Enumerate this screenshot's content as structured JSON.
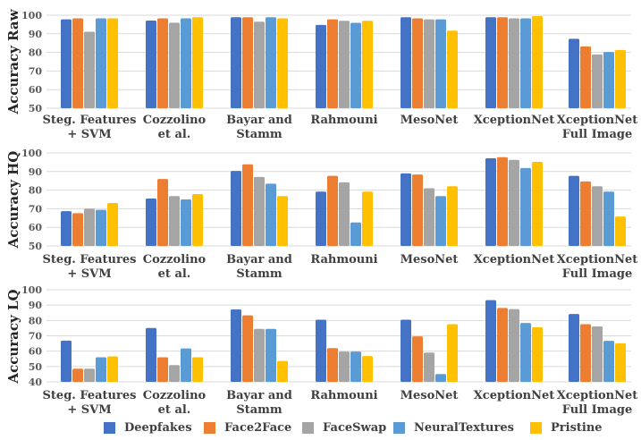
{
  "chart_data": {
    "type": "bar",
    "categories": [
      [
        "Steg. Features",
        "+ SVM"
      ],
      [
        "Cozzolino",
        "et al."
      ],
      [
        "Bayar and",
        "Stamm"
      ],
      [
        "Rahmouni"
      ],
      [
        "MesoNet"
      ],
      [
        "XceptionNet"
      ],
      [
        "XceptionNet",
        "Full Image"
      ]
    ],
    "legend": {
      "position": "bottom",
      "entries": [
        "Deepfakes",
        "Face2Face",
        "FaceSwap",
        "NeuralTextures",
        "Pristine"
      ]
    },
    "series_colors": {
      "Deepfakes": "#4472C4",
      "Face2Face": "#ED7D31",
      "FaceSwap": "#A5A5A5",
      "NeuralTextures": "#5B9BD5",
      "Pristine": "#FFC000"
    },
    "panels": [
      {
        "ylabel": "Accuracy Raw",
        "ylim": [
          50,
          100
        ],
        "yticks": [
          50,
          60,
          70,
          80,
          90,
          100
        ],
        "grid": true,
        "series": [
          {
            "name": "Deepfakes",
            "values": [
              97.8,
              97.1,
              98.9,
              94.8,
              98.9,
              98.9,
              87.3
            ]
          },
          {
            "name": "Face2Face",
            "values": [
              98.3,
              98.3,
              98.9,
              97.8,
              98.3,
              98.9,
              83.2
            ]
          },
          {
            "name": "FaceSwap",
            "values": [
              91.1,
              96.0,
              96.5,
              97.0,
              97.8,
              98.3,
              78.9
            ]
          },
          {
            "name": "NeuralTextures",
            "values": [
              98.3,
              98.3,
              98.9,
              95.9,
              97.8,
              98.3,
              80.2
            ]
          },
          {
            "name": "Pristine",
            "values": [
              98.3,
              98.9,
              98.3,
              97.0,
              91.7,
              99.5,
              81.3
            ]
          }
        ]
      },
      {
        "ylabel": "Accuracy HQ",
        "ylim": [
          50,
          100
        ],
        "yticks": [
          50,
          60,
          70,
          80,
          90,
          100
        ],
        "grid": true,
        "series": [
          {
            "name": "Deepfakes",
            "values": [
              68.7,
              75.5,
              90.3,
              79.2,
              89.0,
              97.1,
              87.7
            ]
          },
          {
            "name": "Face2Face",
            "values": [
              67.6,
              86.0,
              93.9,
              87.7,
              88.4,
              97.7,
              84.7
            ]
          },
          {
            "name": "FaceSwap",
            "values": [
              70.0,
              76.8,
              87.1,
              84.2,
              81.0,
              96.3,
              82.1
            ]
          },
          {
            "name": "NeuralTextures",
            "values": [
              69.4,
              75.0,
              83.5,
              62.6,
              76.8,
              91.9,
              79.2
            ]
          },
          {
            "name": "Pristine",
            "values": [
              73.1,
              77.9,
              76.8,
              79.2,
              82.1,
              95.2,
              65.8
            ]
          }
        ]
      },
      {
        "ylabel": "Accuracy LQ",
        "ylim": [
          40,
          100
        ],
        "yticks": [
          40,
          50,
          60,
          70,
          80,
          90,
          100
        ],
        "grid": true,
        "series": [
          {
            "name": "Deepfakes",
            "values": [
              66.9,
              75.1,
              87.2,
              80.5,
              80.5,
              93.2,
              84.2
            ]
          },
          {
            "name": "Face2Face",
            "values": [
              48.6,
              56.0,
              83.3,
              62.0,
              69.6,
              88.1,
              77.6
            ]
          },
          {
            "name": "FaceSwap",
            "values": [
              48.6,
              50.9,
              74.5,
              59.7,
              59.1,
              87.4,
              76.1
            ]
          },
          {
            "name": "NeuralTextures",
            "values": [
              56.0,
              61.8,
              74.5,
              59.7,
              45.1,
              78.4,
              66.7
            ]
          },
          {
            "name": "Pristine",
            "values": [
              56.6,
              56.0,
              53.6,
              56.8,
              77.6,
              75.5,
              65.1
            ]
          }
        ]
      }
    ]
  }
}
